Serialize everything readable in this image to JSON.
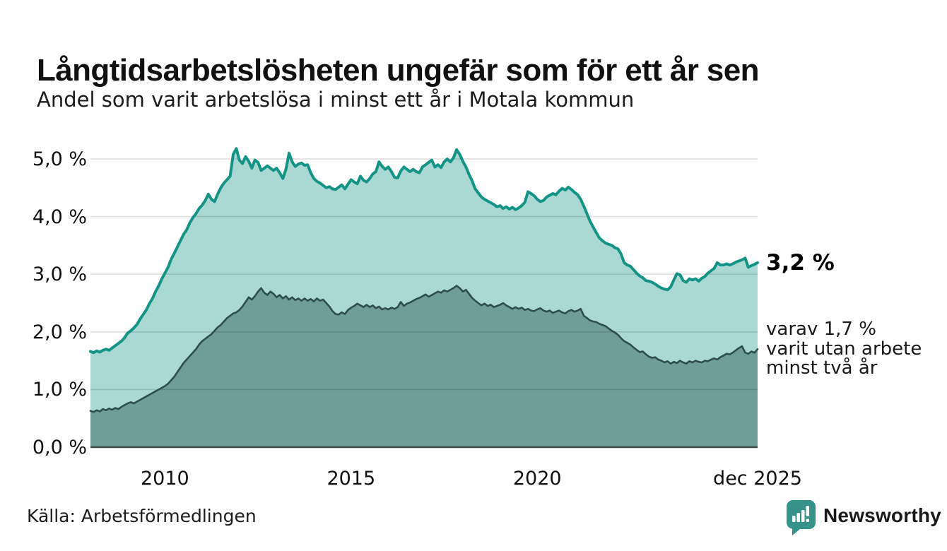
{
  "header": {
    "title": "Långtidsarbetslösheten ungefär som för ett år sen",
    "subtitle": "Andel som varit arbetslösa i minst ett år i Motala kommun"
  },
  "annotations": {
    "primary_value": "3,2 %",
    "secondary_lines": [
      "varav 1,7 %",
      "varit utan arbete",
      "minst två år"
    ]
  },
  "footer": {
    "source": "Källa: Arbetsförmedlingen",
    "brand_name": "Newsworthy",
    "brand_color": "#35938a",
    "brand_icon": "newsworthy-speech-bubble-bar-chart-icon"
  },
  "chart_data": {
    "type": "area",
    "title": "Långtidsarbetslösheten ungefär som för ett år sen",
    "subtitle": "Andel som varit arbetslösa i minst ett år i Motala kommun",
    "xlabel": "",
    "ylabel": "",
    "unit": "%",
    "grid": true,
    "legend_position": "end-of-line annotations",
    "x_axis": {
      "range": [
        2008.0,
        2025.917
      ],
      "ticks": [
        {
          "label": "2010",
          "value": 2010
        },
        {
          "label": "2015",
          "value": 2015
        },
        {
          "label": "2020",
          "value": 2020
        },
        {
          "label": "dec 2025",
          "value": 2025.917
        }
      ]
    },
    "y_axis": {
      "range": [
        0,
        5.0
      ],
      "tick_values": [
        0,
        1,
        2,
        3,
        4,
        5
      ],
      "tick_labels": [
        "0,0 %",
        "1,0 %",
        "2,0 %",
        "3,0 %",
        "4,0 %",
        "5,0 %"
      ]
    },
    "colors": {
      "series1_line": "#149486",
      "series1_fill": "rgba(20,148,134,0.36)",
      "series2_line": "#2e4f49",
      "series2_fill": "#6f9e99",
      "gridline": "rgba(0,0,0,0.13)",
      "baseline": "#3f4a48"
    },
    "series": [
      {
        "name": "Andel arbetslösa minst ett år",
        "end_value": 3.2,
        "end_value_label": "3,2 %",
        "start_year": 2008.0,
        "interval_months": 1,
        "values": [
          1.66,
          1.64,
          1.67,
          1.65,
          1.68,
          1.7,
          1.68,
          1.72,
          1.76,
          1.8,
          1.84,
          1.9,
          1.98,
          2.02,
          2.07,
          2.13,
          2.22,
          2.3,
          2.38,
          2.49,
          2.58,
          2.7,
          2.8,
          2.92,
          3.02,
          3.12,
          3.26,
          3.36,
          3.47,
          3.58,
          3.69,
          3.77,
          3.89,
          3.98,
          4.05,
          4.14,
          4.2,
          4.28,
          4.39,
          4.3,
          4.26,
          4.39,
          4.5,
          4.58,
          4.64,
          4.7,
          5.08,
          5.18,
          4.98,
          4.92,
          5.04,
          4.96,
          4.84,
          4.98,
          4.94,
          4.8,
          4.84,
          4.88,
          4.84,
          4.8,
          4.84,
          4.76,
          4.66,
          4.82,
          5.1,
          4.95,
          4.87,
          4.91,
          4.93,
          4.89,
          4.9,
          4.76,
          4.66,
          4.61,
          4.58,
          4.54,
          4.5,
          4.52,
          4.48,
          4.47,
          4.51,
          4.55,
          4.48,
          4.56,
          4.64,
          4.6,
          4.57,
          4.7,
          4.63,
          4.6,
          4.66,
          4.74,
          4.78,
          4.95,
          4.87,
          4.82,
          4.86,
          4.78,
          4.68,
          4.67,
          4.79,
          4.86,
          4.82,
          4.78,
          4.82,
          4.78,
          4.76,
          4.86,
          4.9,
          4.94,
          4.98,
          4.86,
          4.9,
          4.85,
          4.95,
          5.0,
          4.95,
          5.02,
          5.16,
          5.08,
          4.96,
          4.86,
          4.73,
          4.62,
          4.48,
          4.41,
          4.34,
          4.3,
          4.27,
          4.24,
          4.21,
          4.17,
          4.19,
          4.14,
          4.17,
          4.13,
          4.16,
          4.12,
          4.15,
          4.19,
          4.25,
          4.43,
          4.4,
          4.36,
          4.3,
          4.26,
          4.28,
          4.34,
          4.37,
          4.4,
          4.38,
          4.44,
          4.49,
          4.46,
          4.51,
          4.47,
          4.42,
          4.38,
          4.3,
          4.18,
          4.05,
          3.92,
          3.82,
          3.72,
          3.63,
          3.58,
          3.54,
          3.52,
          3.5,
          3.46,
          3.44,
          3.35,
          3.2,
          3.16,
          3.14,
          3.08,
          3.02,
          2.97,
          2.94,
          2.89,
          2.88,
          2.86,
          2.83,
          2.79,
          2.76,
          2.74,
          2.73,
          2.78,
          2.9,
          3.01,
          2.99,
          2.89,
          2.86,
          2.92,
          2.9,
          2.92,
          2.88,
          2.93,
          2.96,
          3.02,
          3.06,
          3.1,
          3.2,
          3.16,
          3.16,
          3.18,
          3.16,
          3.18,
          3.21,
          3.23,
          3.25,
          3.28,
          3.12,
          3.15,
          3.17,
          3.2
        ]
      },
      {
        "name": "Andel utan arbete minst två år",
        "end_value": 1.7,
        "end_value_label": "varav 1,7 % varit utan arbete minst två år",
        "start_year": 2008.0,
        "interval_months": 1,
        "values": [
          0.63,
          0.61,
          0.64,
          0.62,
          0.66,
          0.64,
          0.67,
          0.65,
          0.68,
          0.66,
          0.7,
          0.73,
          0.76,
          0.78,
          0.76,
          0.79,
          0.82,
          0.85,
          0.88,
          0.91,
          0.94,
          0.97,
          1.0,
          1.03,
          1.06,
          1.1,
          1.16,
          1.22,
          1.3,
          1.38,
          1.46,
          1.52,
          1.58,
          1.64,
          1.7,
          1.78,
          1.84,
          1.88,
          1.92,
          1.96,
          2.02,
          2.08,
          2.12,
          2.18,
          2.24,
          2.28,
          2.32,
          2.34,
          2.38,
          2.44,
          2.52,
          2.6,
          2.56,
          2.62,
          2.7,
          2.76,
          2.68,
          2.64,
          2.7,
          2.66,
          2.6,
          2.64,
          2.58,
          2.62,
          2.56,
          2.6,
          2.55,
          2.58,
          2.54,
          2.58,
          2.54,
          2.57,
          2.53,
          2.58,
          2.54,
          2.56,
          2.5,
          2.44,
          2.36,
          2.31,
          2.3,
          2.34,
          2.31,
          2.38,
          2.42,
          2.45,
          2.49,
          2.46,
          2.43,
          2.47,
          2.43,
          2.46,
          2.41,
          2.44,
          2.39,
          2.41,
          2.39,
          2.42,
          2.4,
          2.43,
          2.52,
          2.45,
          2.49,
          2.51,
          2.54,
          2.57,
          2.59,
          2.62,
          2.65,
          2.61,
          2.64,
          2.67,
          2.7,
          2.68,
          2.72,
          2.7,
          2.73,
          2.76,
          2.8,
          2.76,
          2.7,
          2.73,
          2.66,
          2.59,
          2.54,
          2.5,
          2.46,
          2.49,
          2.45,
          2.47,
          2.43,
          2.45,
          2.47,
          2.5,
          2.46,
          2.43,
          2.4,
          2.43,
          2.4,
          2.42,
          2.38,
          2.4,
          2.37,
          2.36,
          2.39,
          2.41,
          2.37,
          2.35,
          2.37,
          2.33,
          2.35,
          2.37,
          2.34,
          2.32,
          2.36,
          2.38,
          2.35,
          2.37,
          2.4,
          2.28,
          2.24,
          2.2,
          2.18,
          2.17,
          2.14,
          2.12,
          2.1,
          2.06,
          2.02,
          1.99,
          1.95,
          1.89,
          1.84,
          1.81,
          1.78,
          1.73,
          1.69,
          1.65,
          1.66,
          1.61,
          1.57,
          1.55,
          1.56,
          1.52,
          1.5,
          1.47,
          1.49,
          1.45,
          1.48,
          1.46,
          1.5,
          1.47,
          1.45,
          1.49,
          1.47,
          1.5,
          1.48,
          1.47,
          1.5,
          1.49,
          1.52,
          1.54,
          1.52,
          1.56,
          1.59,
          1.62,
          1.61,
          1.64,
          1.68,
          1.72,
          1.75,
          1.64,
          1.62,
          1.66,
          1.64,
          1.7
        ]
      }
    ]
  }
}
